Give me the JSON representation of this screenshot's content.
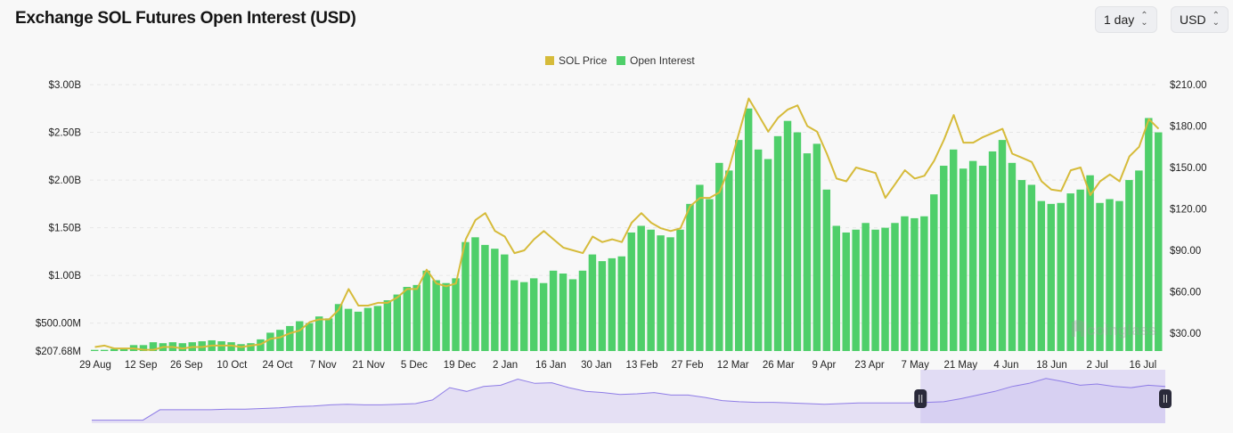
{
  "header": {
    "title": "Exchange SOL Futures Open Interest (USD)",
    "interval_select": {
      "value": "1 day"
    },
    "currency_select": {
      "value": "USD"
    }
  },
  "watermark": "coinglass",
  "chart_data": {
    "type": "bar+line",
    "title": "Exchange SOL Futures Open Interest (USD)",
    "legend": {
      "position": "top-center",
      "items": [
        "SOL Price",
        "Open Interest"
      ]
    },
    "grid": true,
    "x_ticks": [
      "29 Aug",
      "12 Sep",
      "26 Sep",
      "10 Oct",
      "24 Oct",
      "7 Nov",
      "21 Nov",
      "5 Dec",
      "19 Dec",
      "2 Jan",
      "16 Jan",
      "30 Jan",
      "13 Feb",
      "27 Feb",
      "12 Mar",
      "26 Mar",
      "9 Apr",
      "23 Apr",
      "7 May",
      "21 May",
      "4 Jun",
      "18 Jun",
      "2 Jul",
      "16 Jul"
    ],
    "y_left": {
      "ticks": [
        "$207.68M",
        "$500.00M",
        "$1.00B",
        "$1.50B",
        "$2.00B",
        "$2.50B",
        "$3.00B"
      ],
      "tick_values_b": [
        0.20768,
        0.5,
        1.0,
        1.5,
        2.0,
        2.5,
        3.0
      ],
      "range_b": [
        0.20768,
        3.0
      ]
    },
    "y_right": {
      "ticks": [
        "$30.00",
        "$60.00",
        "$90.00",
        "$120.00",
        "$150.00",
        "$180.00",
        "$210.00"
      ],
      "tick_values": [
        30,
        60,
        90,
        120,
        150,
        180,
        210
      ]
    },
    "colors": {
      "price": "#d6bb3a",
      "open_interest": "#4fcf6a"
    },
    "series": [
      {
        "name": "Open Interest",
        "type": "bar",
        "axis": "left",
        "unit": "USD billions",
        "values": [
          0.22,
          0.22,
          0.23,
          0.23,
          0.27,
          0.27,
          0.3,
          0.29,
          0.3,
          0.29,
          0.3,
          0.31,
          0.32,
          0.31,
          0.3,
          0.28,
          0.29,
          0.33,
          0.4,
          0.43,
          0.47,
          0.52,
          0.5,
          0.57,
          0.55,
          0.7,
          0.65,
          0.62,
          0.66,
          0.68,
          0.74,
          0.8,
          0.88,
          0.9,
          1.05,
          0.95,
          0.92,
          0.97,
          1.35,
          1.4,
          1.32,
          1.28,
          1.22,
          0.95,
          0.93,
          0.97,
          0.92,
          1.05,
          1.02,
          0.96,
          1.05,
          1.22,
          1.15,
          1.18,
          1.2,
          1.45,
          1.52,
          1.48,
          1.42,
          1.4,
          1.48,
          1.75,
          1.95,
          1.8,
          2.18,
          2.1,
          2.42,
          2.75,
          2.32,
          2.22,
          2.46,
          2.62,
          2.5,
          2.28,
          2.38,
          1.9,
          1.52,
          1.45,
          1.48,
          1.55,
          1.48,
          1.5,
          1.55,
          1.62,
          1.6,
          1.62,
          1.85,
          2.15,
          2.32,
          2.12,
          2.2,
          2.15,
          2.3,
          2.42,
          2.18,
          2.0,
          1.95,
          1.78,
          1.75,
          1.76,
          1.86,
          1.9,
          2.05,
          1.76,
          1.8,
          1.78,
          2.0,
          2.1,
          2.65,
          2.5
        ]
      },
      {
        "name": "SOL Price",
        "type": "line",
        "axis": "right",
        "unit": "USD",
        "values": [
          20,
          21,
          19,
          19,
          19,
          18,
          18,
          20,
          20,
          19,
          20,
          20,
          21,
          21,
          21,
          20,
          21,
          22,
          26,
          27,
          30,
          32,
          38,
          40,
          40,
          47,
          62,
          50,
          50,
          52,
          52,
          56,
          62,
          62,
          76,
          66,
          64,
          66,
          98,
          112,
          117,
          104,
          100,
          88,
          90,
          98,
          104,
          98,
          92,
          90,
          88,
          100,
          96,
          98,
          96,
          110,
          117,
          110,
          106,
          104,
          106,
          122,
          128,
          128,
          132,
          150,
          175,
          200,
          188,
          176,
          186,
          192,
          195,
          180,
          176,
          160,
          142,
          140,
          150,
          148,
          146,
          128,
          138,
          148,
          142,
          144,
          155,
          170,
          188,
          168,
          168,
          172,
          175,
          178,
          160,
          157,
          154,
          140,
          134,
          133,
          148,
          150,
          130,
          140,
          145,
          140,
          158,
          165,
          185,
          178
        ]
      }
    ]
  },
  "navigator": {
    "series": [
      5,
      5,
      5,
      5,
      22,
      22,
      22,
      22,
      23,
      23,
      24,
      25,
      27,
      28,
      30,
      31,
      30,
      30,
      31,
      32,
      38,
      58,
      52,
      60,
      62,
      72,
      65,
      66,
      58,
      52,
      50,
      47,
      48,
      50,
      46,
      46,
      42,
      37,
      35,
      34,
      34,
      33,
      32,
      31,
      32,
      33,
      33,
      33,
      33,
      34,
      35,
      40,
      46,
      52,
      60,
      65,
      73,
      68,
      62,
      64,
      60,
      58,
      62,
      60
    ],
    "selected_range": [
      0.772,
      1.0
    ]
  }
}
